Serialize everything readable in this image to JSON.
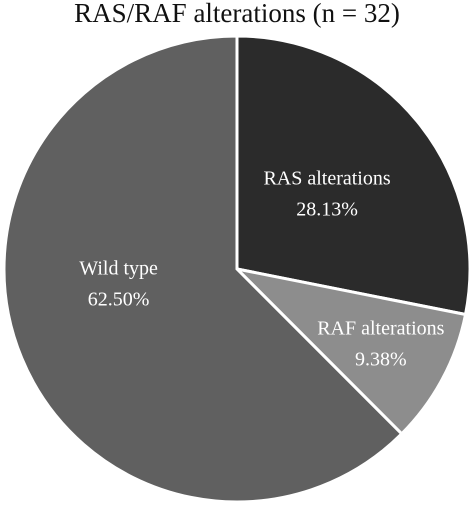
{
  "chart_data": {
    "type": "pie",
    "title": "RAS/RAF alterations (n = 32)",
    "categories": [
      "RAS alterations",
      "RAF alterations",
      "Wild type"
    ],
    "values": [
      28.13,
      9.38,
      62.5
    ],
    "value_labels": [
      "28.13%",
      "9.38%",
      "62.50%"
    ],
    "colors": [
      "#2b2b2b",
      "#8d8d8d",
      "#606060"
    ]
  }
}
